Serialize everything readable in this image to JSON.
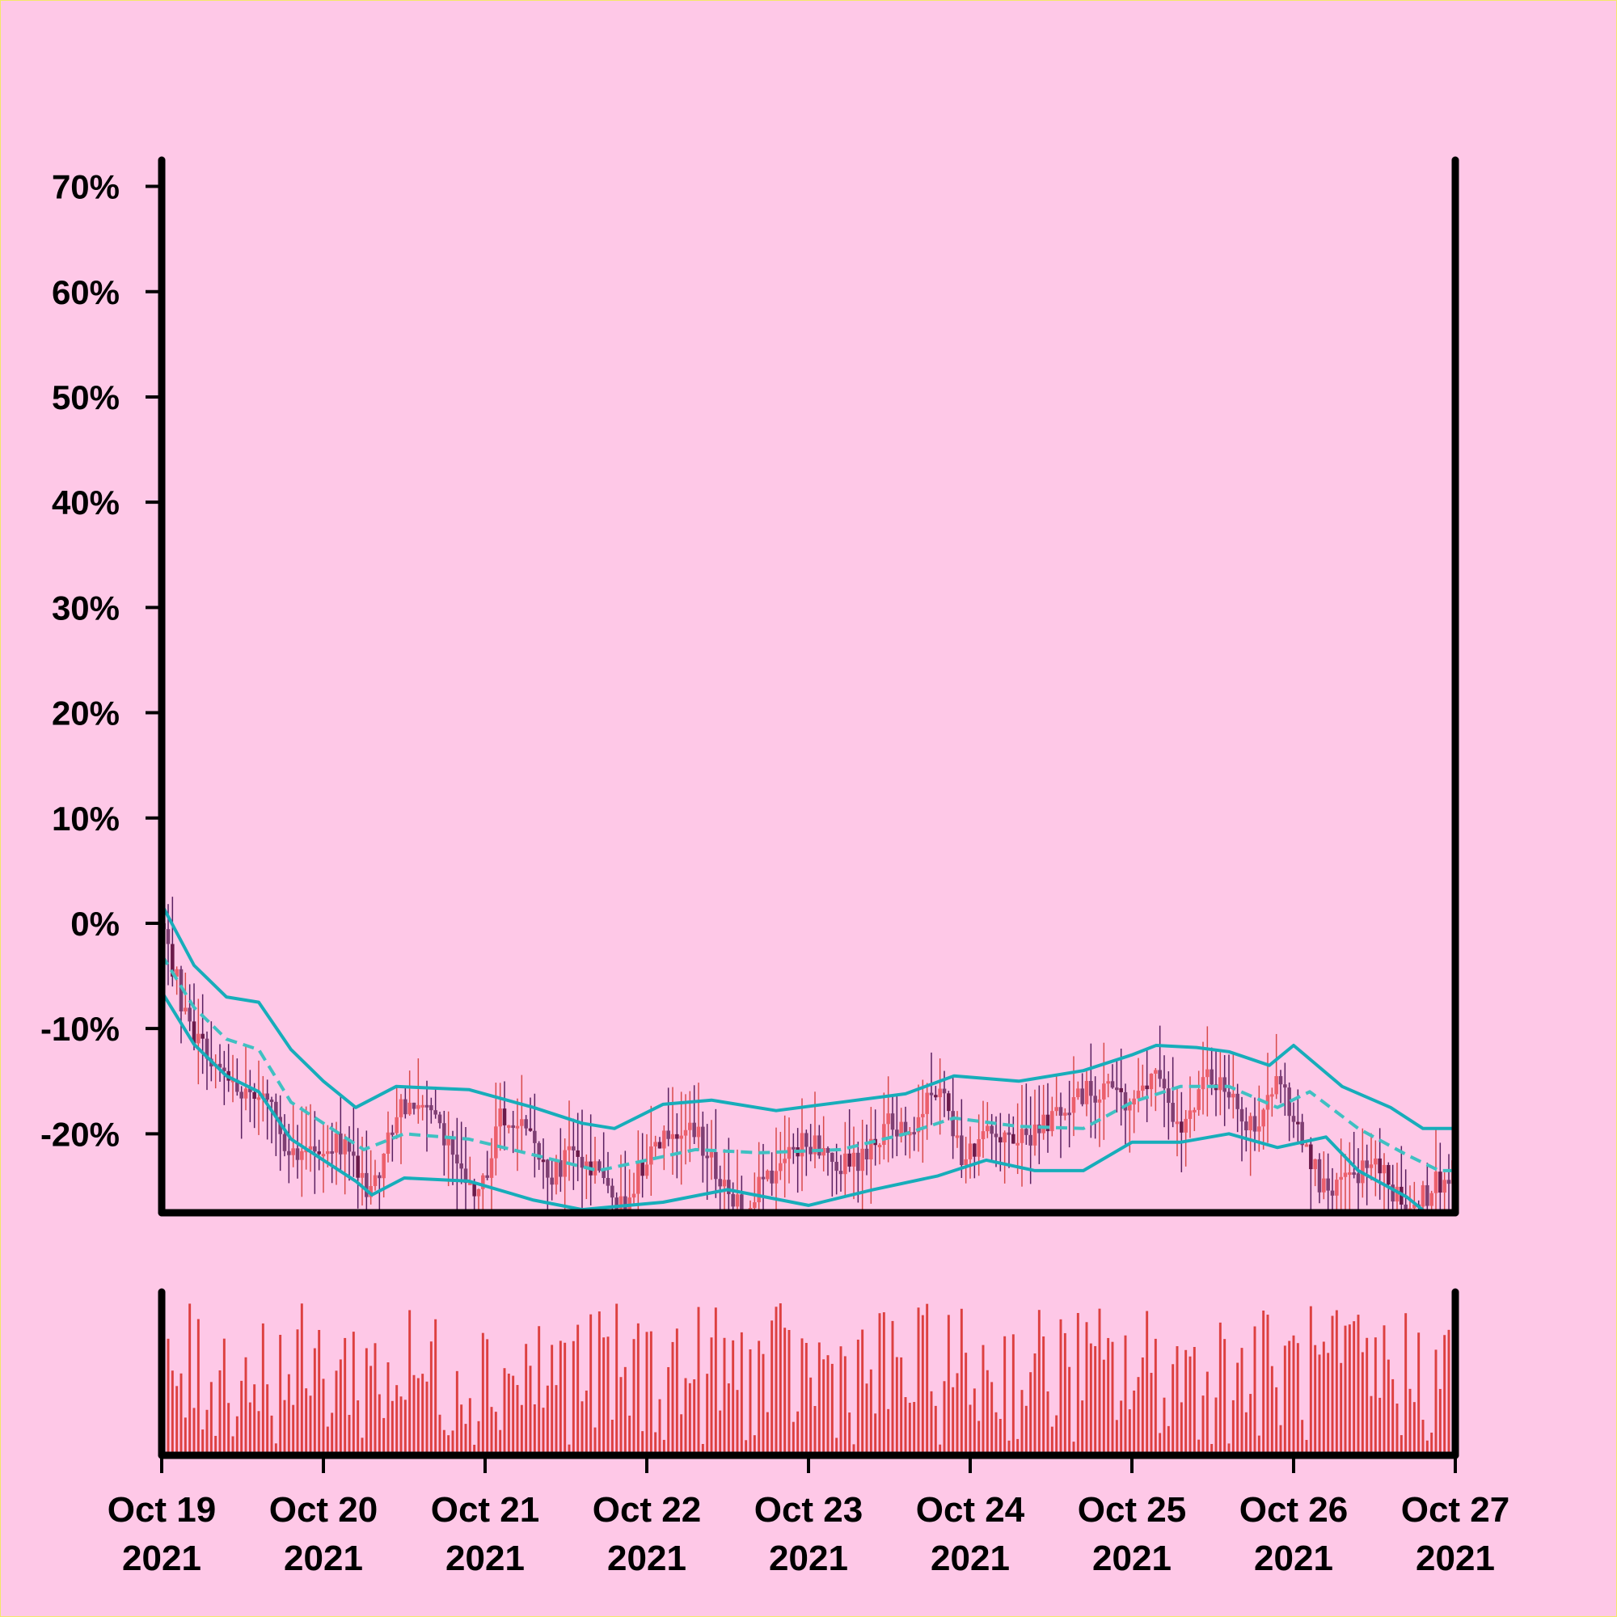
{
  "chart_data": {
    "type": "candlestick",
    "title": "",
    "xlabel": "",
    "ylabel": "",
    "x_ticks": [
      {
        "l1": "Oct 19",
        "l2": "2021"
      },
      {
        "l1": "Oct 20",
        "l2": "2021"
      },
      {
        "l1": "Oct 21",
        "l2": "2021"
      },
      {
        "l1": "Oct 22",
        "l2": "2021"
      },
      {
        "l1": "Oct 23",
        "l2": "2021"
      },
      {
        "l1": "Oct 24",
        "l2": "2021"
      },
      {
        "l1": "Oct 25",
        "l2": "2021"
      },
      {
        "l1": "Oct 26",
        "l2": "2021"
      },
      {
        "l1": "Oct 27",
        "l2": "2021"
      }
    ],
    "y_ticks": [
      "70%",
      "60%",
      "50%",
      "40%",
      "30%",
      "20%",
      "10%",
      "0%",
      "-10%",
      "-20%"
    ],
    "y_tick_values": [
      70,
      60,
      50,
      40,
      30,
      20,
      10,
      0,
      -10,
      -20
    ],
    "ylim": [
      -27.5,
      72.5
    ],
    "x_range_days": [
      0,
      8
    ],
    "grid": false,
    "series": [
      {
        "kind": "candlestick",
        "approx_close_path": [
          [
            0.0,
            0
          ],
          [
            0.15,
            -9
          ],
          [
            0.3,
            -13
          ],
          [
            0.5,
            -16
          ],
          [
            0.65,
            -16
          ],
          [
            0.8,
            -22
          ],
          [
            1.0,
            -21
          ],
          [
            1.15,
            -21
          ],
          [
            1.3,
            -26
          ],
          [
            1.45,
            -18
          ],
          [
            1.6,
            -16
          ],
          [
            1.8,
            -22
          ],
          [
            1.95,
            -27
          ],
          [
            2.1,
            -18
          ],
          [
            2.25,
            -20
          ],
          [
            2.4,
            -24
          ],
          [
            2.55,
            -22
          ],
          [
            2.7,
            -24
          ],
          [
            2.85,
            -27
          ],
          [
            3.0,
            -22
          ],
          [
            3.15,
            -19
          ],
          [
            3.3,
            -20
          ],
          [
            3.45,
            -24
          ],
          [
            3.6,
            -27
          ],
          [
            3.75,
            -24
          ],
          [
            3.9,
            -21
          ],
          [
            4.05,
            -21
          ],
          [
            4.2,
            -23
          ],
          [
            4.35,
            -22
          ],
          [
            4.5,
            -19
          ],
          [
            4.65,
            -19
          ],
          [
            4.8,
            -15
          ],
          [
            4.95,
            -22
          ],
          [
            5.1,
            -20
          ],
          [
            5.25,
            -21
          ],
          [
            5.4,
            -20
          ],
          [
            5.55,
            -18
          ],
          [
            5.7,
            -16
          ],
          [
            5.85,
            -16
          ],
          [
            6.0,
            -17
          ],
          [
            6.15,
            -13
          ],
          [
            6.3,
            -20
          ],
          [
            6.45,
            -15
          ],
          [
            6.6,
            -16
          ],
          [
            6.75,
            -20
          ],
          [
            6.9,
            -15
          ],
          [
            7.05,
            -20
          ],
          [
            7.2,
            -26
          ],
          [
            7.35,
            -24
          ],
          [
            7.5,
            -23
          ],
          [
            7.65,
            -26
          ],
          [
            7.8,
            -26
          ],
          [
            8.0,
            -23
          ]
        ]
      },
      {
        "kind": "band_upper",
        "approx_path": [
          [
            0.0,
            1.8
          ],
          [
            0.2,
            -4
          ],
          [
            0.4,
            -7
          ],
          [
            0.6,
            -7.5
          ],
          [
            0.8,
            -12
          ],
          [
            1.0,
            -15
          ],
          [
            1.2,
            -17.5
          ],
          [
            1.45,
            -15.5
          ],
          [
            1.9,
            -15.8
          ],
          [
            2.3,
            -17.5
          ],
          [
            2.6,
            -19
          ],
          [
            2.8,
            -19.5
          ],
          [
            3.1,
            -17.2
          ],
          [
            3.4,
            -16.8
          ],
          [
            3.8,
            -17.8
          ],
          [
            4.2,
            -17.0
          ],
          [
            4.6,
            -16.2
          ],
          [
            4.9,
            -14.5
          ],
          [
            5.3,
            -15
          ],
          [
            5.7,
            -14
          ],
          [
            6.0,
            -12.5
          ],
          [
            6.15,
            -11.6
          ],
          [
            6.4,
            -11.8
          ],
          [
            6.6,
            -12.2
          ],
          [
            6.85,
            -13.5
          ],
          [
            7.0,
            -11.6
          ],
          [
            7.3,
            -15.5
          ],
          [
            7.6,
            -17.5
          ],
          [
            7.8,
            -19.5
          ],
          [
            8.0,
            -19.5
          ]
        ]
      },
      {
        "kind": "band_middle",
        "approx_path": [
          [
            0.0,
            -3
          ],
          [
            0.2,
            -8
          ],
          [
            0.4,
            -11
          ],
          [
            0.6,
            -12
          ],
          [
            0.8,
            -17
          ],
          [
            1.0,
            -19
          ],
          [
            1.25,
            -21.5
          ],
          [
            1.5,
            -20
          ],
          [
            1.9,
            -20.5
          ],
          [
            2.3,
            -22
          ],
          [
            2.7,
            -23.5
          ],
          [
            3.0,
            -22.5
          ],
          [
            3.3,
            -21.5
          ],
          [
            3.7,
            -21.8
          ],
          [
            4.2,
            -21.5
          ],
          [
            4.6,
            -20
          ],
          [
            4.9,
            -18.5
          ],
          [
            5.3,
            -19.3
          ],
          [
            5.7,
            -19.5
          ],
          [
            6.0,
            -17
          ],
          [
            6.3,
            -15.5
          ],
          [
            6.6,
            -15.5
          ],
          [
            6.9,
            -17.5
          ],
          [
            7.1,
            -16
          ],
          [
            7.4,
            -19.5
          ],
          [
            7.7,
            -22
          ],
          [
            7.9,
            -23.5
          ],
          [
            8.0,
            -23.5
          ]
        ]
      },
      {
        "kind": "band_lower",
        "approx_path": [
          [
            0.0,
            -6.5
          ],
          [
            0.2,
            -11.5
          ],
          [
            0.4,
            -14.5
          ],
          [
            0.6,
            -16
          ],
          [
            0.8,
            -20.5
          ],
          [
            1.0,
            -22.5
          ],
          [
            1.2,
            -24.5
          ],
          [
            1.3,
            -25.8
          ],
          [
            1.5,
            -24.2
          ],
          [
            1.9,
            -24.5
          ],
          [
            2.3,
            -26.3
          ],
          [
            2.6,
            -27.2
          ],
          [
            3.1,
            -26.5
          ],
          [
            3.5,
            -25.3
          ],
          [
            4.0,
            -26.8
          ],
          [
            4.4,
            -25.3
          ],
          [
            4.8,
            -24
          ],
          [
            5.1,
            -22.5
          ],
          [
            5.4,
            -23.5
          ],
          [
            5.7,
            -23.5
          ],
          [
            6.0,
            -20.8
          ],
          [
            6.3,
            -20.8
          ],
          [
            6.6,
            -20.0
          ],
          [
            6.9,
            -21.3
          ],
          [
            7.2,
            -20.3
          ],
          [
            7.4,
            -23.5
          ],
          [
            7.7,
            -26
          ],
          [
            7.9,
            -28.5
          ],
          [
            8.0,
            -28.5
          ]
        ]
      }
    ],
    "volume": {
      "kind": "bars",
      "count": 300
    }
  },
  "colors": {
    "background": "#fec8e7",
    "frame_border": "#f4e86a",
    "axis": "#000000",
    "band_line": "#17adba",
    "band_middle": "#3fc0c2",
    "candle_up": "#ec5f6b",
    "candle_down": "#7f3f73",
    "candle_dark": "#6b1a4a",
    "wick_up": "#d84a4a",
    "wick_down": "#5a2060",
    "volume_bar": "#dd4040"
  }
}
